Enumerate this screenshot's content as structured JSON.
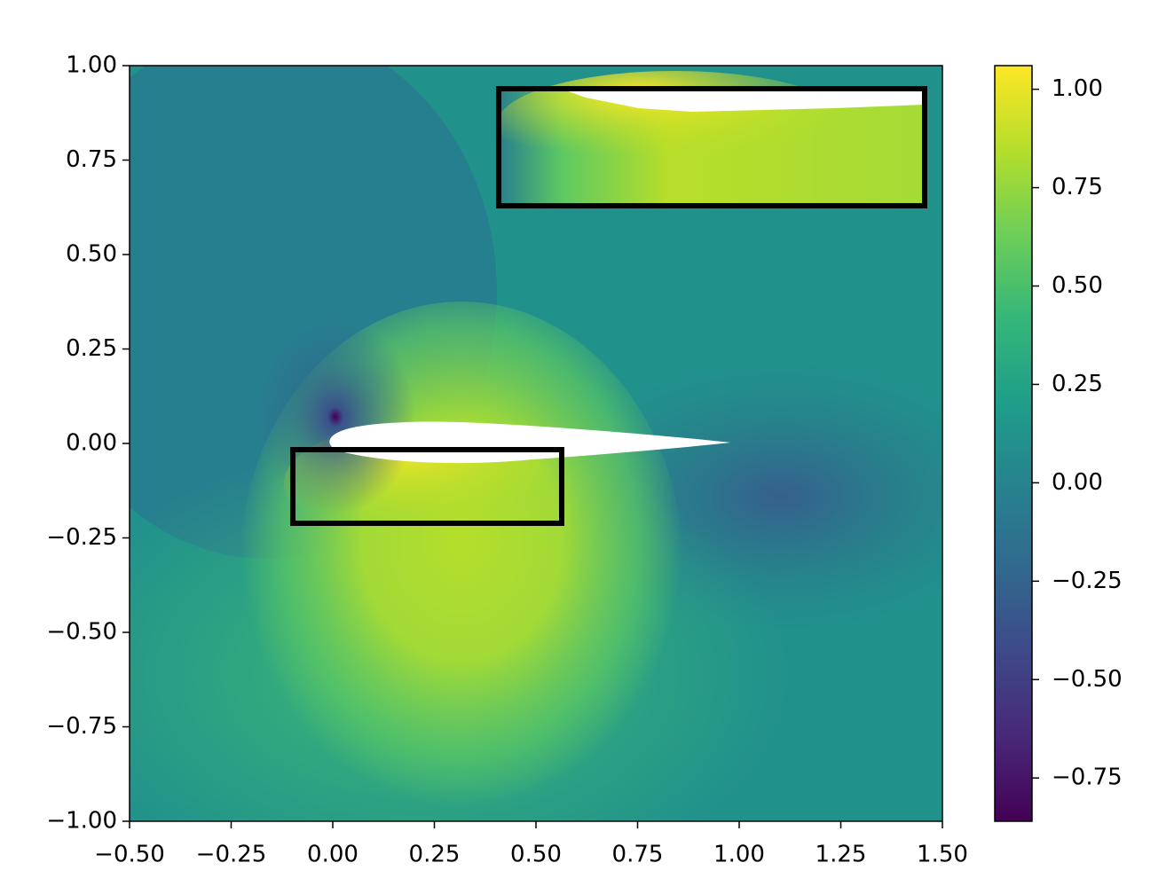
{
  "chart_data": {
    "type": "field",
    "colormap": "viridis",
    "xlim": [
      -0.5,
      1.5
    ],
    "ylim": [
      -1.0,
      1.0
    ],
    "xticks": [
      {
        "value": -0.5,
        "label": "−0.50"
      },
      {
        "value": -0.25,
        "label": "−0.25"
      },
      {
        "value": 0,
        "label": "0.00"
      },
      {
        "value": 0.25,
        "label": "0.25"
      },
      {
        "value": 0.5,
        "label": "0.50"
      },
      {
        "value": 0.75,
        "label": "0.75"
      },
      {
        "value": 1,
        "label": "1.00"
      },
      {
        "value": 1.25,
        "label": "1.25"
      },
      {
        "value": 1.5,
        "label": "1.50"
      }
    ],
    "yticks": [
      {
        "value": -1,
        "label": "−1.00"
      },
      {
        "value": -0.75,
        "label": "−0.75"
      },
      {
        "value": -0.5,
        "label": "−0.50"
      },
      {
        "value": -0.25,
        "label": "−0.25"
      },
      {
        "value": 0,
        "label": "0.00"
      },
      {
        "value": 0.25,
        "label": "0.25"
      },
      {
        "value": 0.5,
        "label": "0.50"
      },
      {
        "value": 0.75,
        "label": "0.75"
      },
      {
        "value": 1,
        "label": "1.00"
      }
    ],
    "clim": [
      -0.86,
      1.06
    ],
    "cticks": [
      {
        "value": -0.75,
        "label": "−0.75"
      },
      {
        "value": -0.5,
        "label": "−0.50"
      },
      {
        "value": -0.25,
        "label": "−0.25"
      },
      {
        "value": 0,
        "label": "0.00"
      },
      {
        "value": 0.25,
        "label": "0.25"
      },
      {
        "value": 0.5,
        "label": "0.50"
      },
      {
        "value": 0.75,
        "label": "0.75"
      },
      {
        "value": 1,
        "label": "1.00"
      }
    ]
  }
}
